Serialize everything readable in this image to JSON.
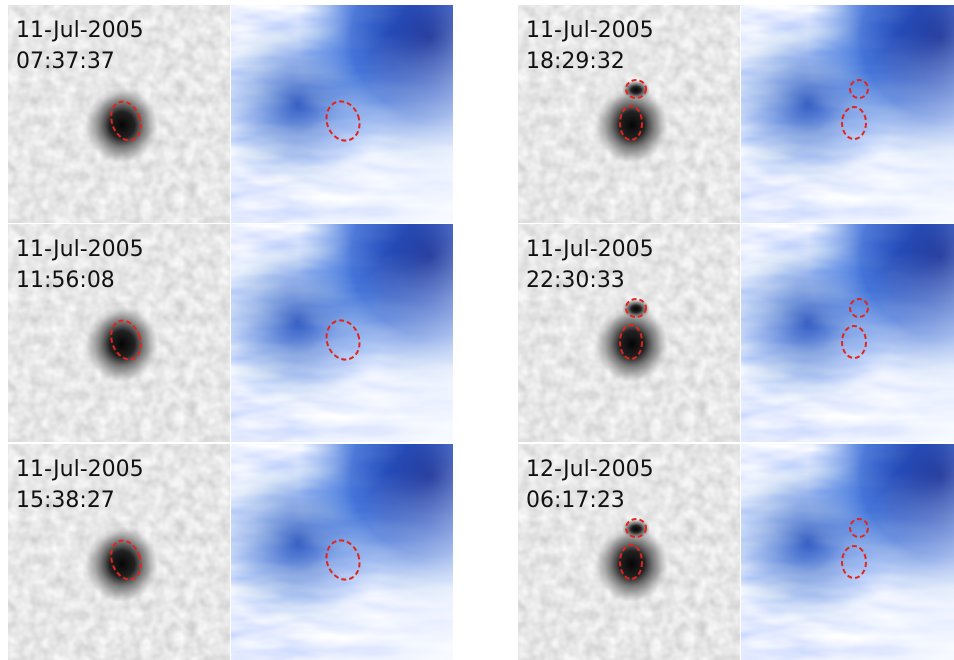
{
  "panels": [
    {
      "date": "11-Jul-2005",
      "time": "07:37:37"
    },
    {
      "date": "11-Jul-2005",
      "time": "11:56:08"
    },
    {
      "date": "11-Jul-2005",
      "time": "15:38:27"
    },
    {
      "date": "11-Jul-2005",
      "time": "18:29:32"
    },
    {
      "date": "11-Jul-2005",
      "time": "22:30:33"
    },
    {
      "date": "12-Jul-2005",
      "time": "06:17:23"
    }
  ]
}
